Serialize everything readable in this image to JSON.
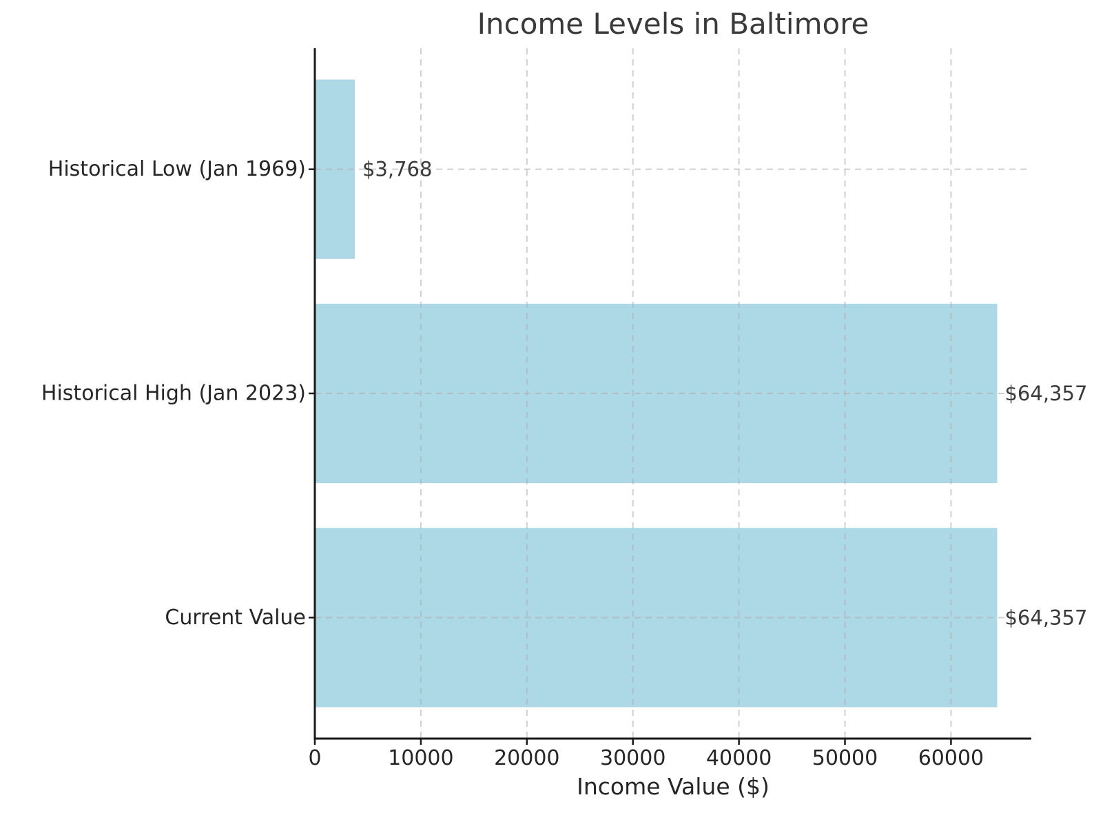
{
  "chart_data": {
    "type": "bar",
    "orientation": "horizontal",
    "title": "Income Levels in Baltimore",
    "xlabel": "Income Value ($)",
    "ylabel": "",
    "categories": [
      "Historical Low (Jan 1969)",
      "Historical High (Jan 2023)",
      "Current Value"
    ],
    "values": [
      3768,
      64357,
      64357
    ],
    "value_labels": [
      "$3,768",
      "$64,357",
      "$64,357"
    ],
    "xticks": [
      0,
      10000,
      20000,
      30000,
      40000,
      50000,
      60000
    ],
    "xtick_labels": [
      "0",
      "10000",
      "20000",
      "30000",
      "40000",
      "50000",
      "60000"
    ],
    "xlim": [
      0,
      67575
    ],
    "grid": true,
    "grid_style": "dashed",
    "legend_position": "none",
    "colors": {
      "bar_fill": "#add8e6",
      "grid_line": "#b0b0b0",
      "axis_line": "#1a1a1a",
      "tick_text": "#262626",
      "title_text": "#3a3a3a",
      "annotation_text": "#3a3a3a"
    }
  }
}
